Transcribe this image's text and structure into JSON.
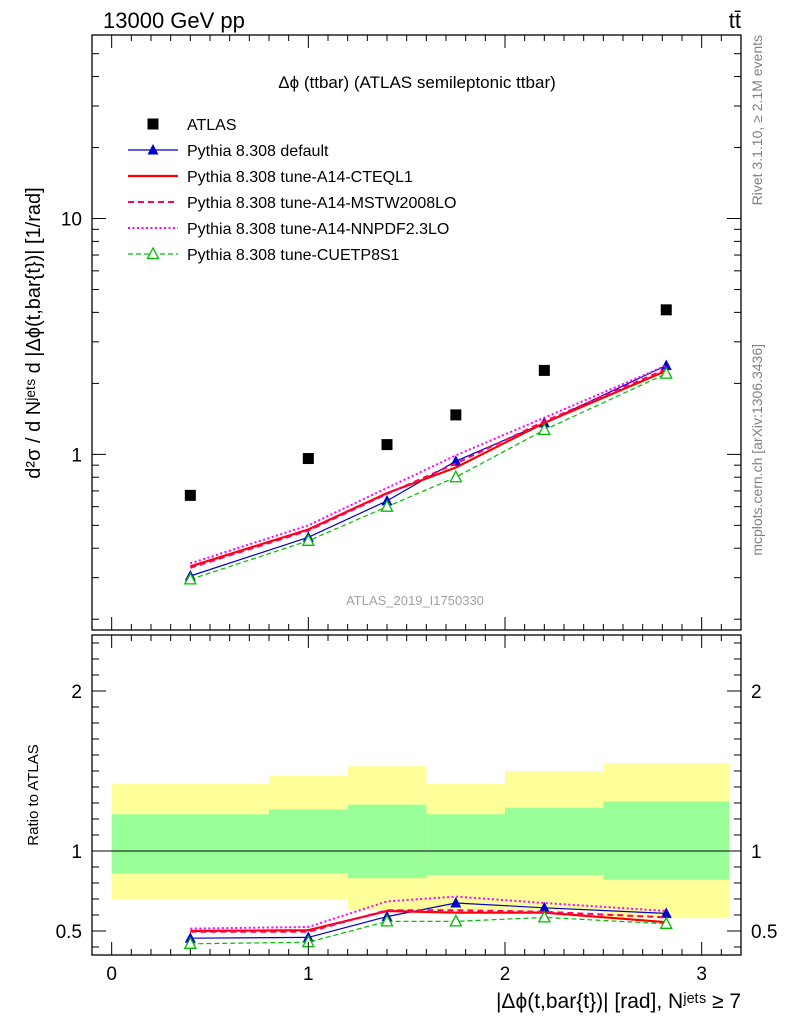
{
  "header": {
    "left_label": "13000 GeV pp",
    "right_label": "tt̄"
  },
  "side_labels": {
    "rivet": "Rivet 3.1.10, ≥ 2.1M events",
    "mcplots": "mcplots.cern.ch [arXiv:1306.3436]"
  },
  "chart_data": [
    {
      "type": "scatter",
      "panel": "main",
      "title": "Δϕ (ttbar) (ATLAS semileptonic ttbar)",
      "ylabel": "d²σ / d Nʲᵉᵗˢ d |Δϕ(t,bar{t})| [1/rad]",
      "analysis_label": "ATLAS_2019_I1750330",
      "yscale": "log",
      "ylim": [
        0.18,
        60
      ],
      "xlim": [
        -0.1,
        3.2
      ],
      "yticks": [
        {
          "v": 1,
          "label": "1"
        },
        {
          "v": 10,
          "label": "10"
        }
      ],
      "legend_placement": "top-left",
      "x": [
        0.4,
        1.0,
        1.4,
        1.75,
        2.2,
        2.82
      ],
      "x_bin_edges": [
        0.0,
        0.8,
        1.2,
        1.6,
        2.0,
        2.5,
        3.14
      ],
      "series": [
        {
          "name": "ATLAS",
          "style": "data",
          "color": "#000000",
          "values": [
            0.67,
            0.96,
            1.1,
            1.47,
            2.27,
            4.1
          ]
        },
        {
          "name": "Pythia 8.308 default",
          "style": "blue",
          "color": "#0000cc",
          "values": [
            0.305,
            0.445,
            0.635,
            0.935,
            1.36,
            2.38
          ]
        },
        {
          "name": "Pythia 8.308 tune-A14-CTEQL1",
          "style": "red",
          "color": "#ff0000",
          "values": [
            0.335,
            0.48,
            0.685,
            0.88,
            1.36,
            2.26
          ]
        },
        {
          "name": "Pythia 8.308 tune-A14-MSTW2008LO",
          "style": "magenta-dashed",
          "color": "#ff0066",
          "values": [
            0.33,
            0.475,
            0.68,
            0.915,
            1.38,
            2.3
          ]
        },
        {
          "name": "Pythia 8.308 tune-A14-NNPDF2.3LO",
          "style": "magenta-dotted",
          "color": "#ff00ff",
          "values": [
            0.345,
            0.5,
            0.72,
            0.99,
            1.43,
            2.38
          ]
        },
        {
          "name": "Pythia 8.308 tune-CUETP8S1",
          "style": "green-dashed",
          "color": "#00bb00",
          "values": [
            0.295,
            0.43,
            0.6,
            0.8,
            1.27,
            2.2
          ]
        }
      ]
    },
    {
      "type": "line",
      "panel": "ratio",
      "ylabel": "Ratio to ATLAS",
      "xlabel": "|Δϕ(t,bar{t})| [rad], Nʲᵉᵗˢ ≥ 7",
      "ylim": [
        0.35,
        2.35
      ],
      "xlim": [
        -0.1,
        3.2
      ],
      "yticks": [
        {
          "v": 0.5,
          "label": "0.5"
        },
        {
          "v": 1,
          "label": "1"
        },
        {
          "v": 2,
          "label": "2"
        }
      ],
      "xticks": [
        {
          "v": 0,
          "label": "0"
        },
        {
          "v": 1,
          "label": "1"
        },
        {
          "v": 2,
          "label": "2"
        },
        {
          "v": 3,
          "label": "3"
        }
      ],
      "x": [
        0.4,
        1.0,
        1.4,
        1.75,
        2.2,
        2.82
      ],
      "x_bin_edges": [
        0.0,
        0.8,
        1.2,
        1.6,
        2.0,
        2.5,
        3.14
      ],
      "band_colors": {
        "outer": "#ffff99",
        "inner": "#99ff99"
      },
      "band_outer": [
        [
          0.7,
          1.42
        ],
        [
          0.7,
          1.47
        ],
        [
          0.63,
          1.53
        ],
        [
          0.63,
          1.42
        ],
        [
          0.63,
          1.5
        ],
        [
          0.58,
          1.55
        ]
      ],
      "band_inner": [
        [
          0.86,
          1.23
        ],
        [
          0.86,
          1.26
        ],
        [
          0.83,
          1.29
        ],
        [
          0.85,
          1.23
        ],
        [
          0.85,
          1.27
        ],
        [
          0.82,
          1.31
        ]
      ],
      "series": [
        {
          "name": "Pythia 8.308 default",
          "style": "blue",
          "color": "#0000cc",
          "values": [
            0.455,
            0.46,
            0.59,
            0.675,
            0.645,
            0.61
          ]
        },
        {
          "name": "Pythia 8.308 tune-A14-CTEQL1",
          "style": "red",
          "color": "#ff0000",
          "values": [
            0.5,
            0.505,
            0.625,
            0.615,
            0.615,
            0.555
          ]
        },
        {
          "name": "Pythia 8.308 tune-A14-MSTW2008LO",
          "style": "magenta-dashed",
          "color": "#ff0066",
          "values": [
            0.495,
            0.495,
            0.63,
            0.63,
            0.62,
            0.585
          ]
        },
        {
          "name": "Pythia 8.308 tune-A14-NNPDF2.3LO",
          "style": "magenta-dotted",
          "color": "#ff00ff",
          "values": [
            0.515,
            0.525,
            0.685,
            0.715,
            0.675,
            0.625
          ]
        },
        {
          "name": "Pythia 8.308 tune-CUETP8S1",
          "style": "green-dashed",
          "color": "#00bb00",
          "values": [
            0.42,
            0.43,
            0.56,
            0.56,
            0.585,
            0.545
          ]
        }
      ]
    }
  ]
}
